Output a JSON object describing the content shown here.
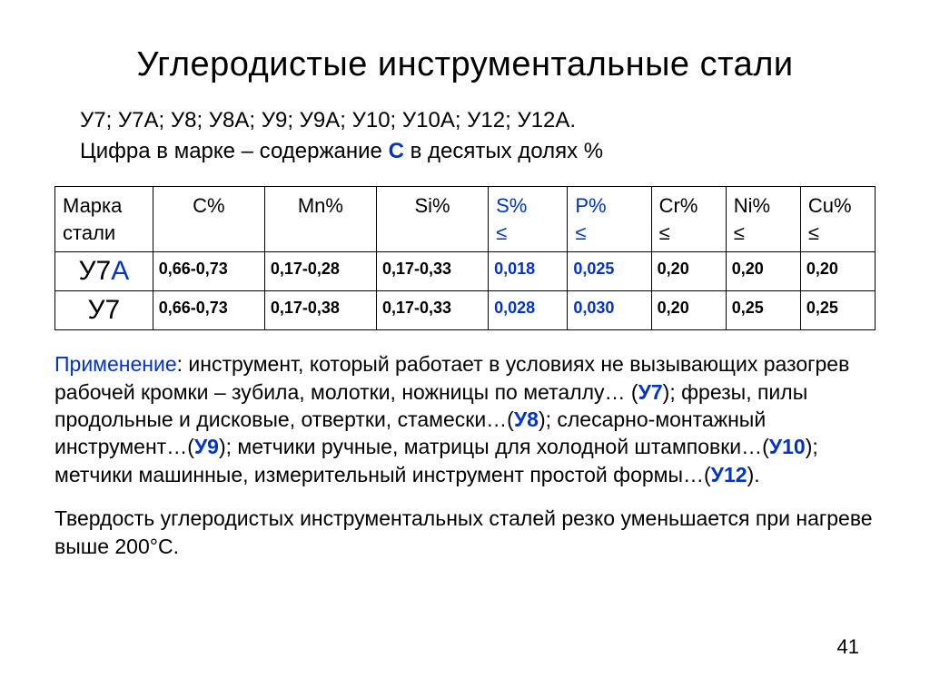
{
  "title": "Углеродистые инструментальные стали",
  "grades_line": "У7;  У7А;  У8;  У8А;  У9;  У9А;  У10;  У10А;  У12;  У12А.",
  "subtitle_pre": "Цифра в марке – содержание ",
  "subtitle_c": "С",
  "subtitle_post": " в десятых долях %",
  "table": {
    "headers": {
      "grade_l1": "Марка",
      "grade_l2": "стали",
      "c": "C%",
      "mn": "Mn%",
      "si": "Si%",
      "s_l1": "S%",
      "s_l2": "≤",
      "p_l1": "P%",
      "p_l2": "≤",
      "cr_l1": "Cr%",
      "cr_l2": "≤",
      "ni_l1": "Ni%",
      "ni_l2": "≤",
      "cu_l1": "Cu%",
      "cu_l2": "≤"
    },
    "rows": [
      {
        "label_black": "У7",
        "label_blue": "А",
        "c": "0,66-0,73",
        "mn": "0,17-0,28",
        "si": "0,17-0,33",
        "s": "0,018",
        "p": "0,025",
        "cr": "0,20",
        "ni": "0,20",
        "cu": "0,20"
      },
      {
        "label_black": "У7",
        "label_blue": "",
        "c": "0,66-0,73",
        "mn": "0,17-0,38",
        "si": "0,17-0,33",
        "s": "0,028",
        "p": "0,030",
        "cr": "0,20",
        "ni": "0,25",
        "cu": "0,25"
      }
    ],
    "col_widths_pct": [
      10.5,
      12,
      12,
      12,
      8.5,
      9,
      8,
      8,
      8
    ],
    "blue_header_cols": [
      4,
      5
    ],
    "blue_value_cols": [
      4,
      5
    ]
  },
  "application": {
    "label": "Применение",
    "t0": ": инструмент, который работает в условиях не вызывающих разогрев рабочей кромки – зубила, молотки, ножницы по металлу… ",
    "paren_open": "(",
    "u7": "У7",
    "t1": "); фрезы, пилы продольные и дисковые, отвертки, стамески…(",
    "u8": "У8",
    "t2": "); слесарно-монтажный инструмент…(",
    "u9": "У9",
    "t3": "); метчики ручные, матрицы для холодной штамповки…(",
    "u10": "У10",
    "t4": "); метчики машинные, измерительный инструмент простой формы…(",
    "u12": "У12",
    "t5": ")."
  },
  "hardness_note": "Твердость углеродистых инструментальных сталей резко уменьшается при нагреве выше 200°С.",
  "page_number": "41",
  "colors": {
    "text": "#000000",
    "blue": "#0033cc",
    "background": "#ffffff",
    "border": "#000000"
  }
}
